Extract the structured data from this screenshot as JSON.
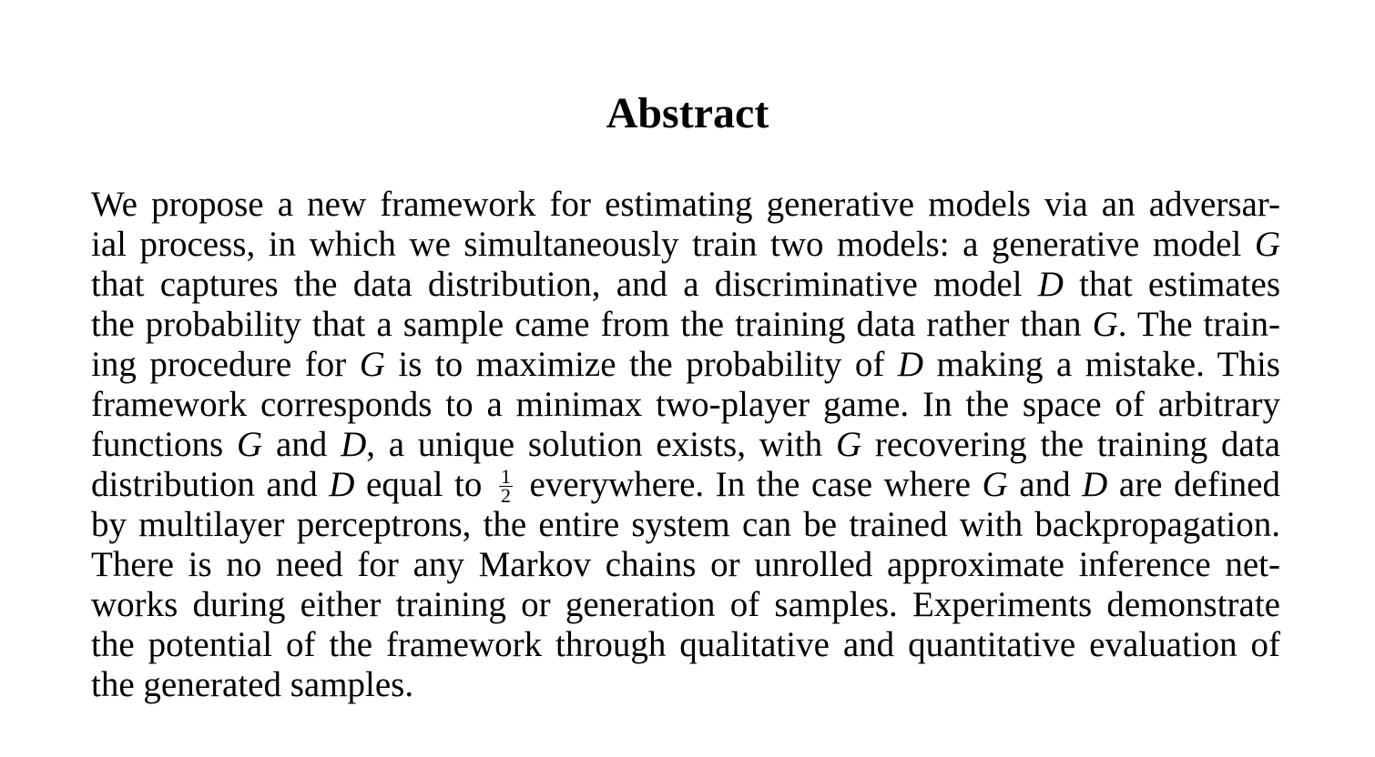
{
  "heading": "Abstract",
  "lines": [
    [
      "We propose a new framework for estimating generative models via an adversar-"
    ],
    [
      "ial process, in which we simultaneously train two models: a generative model ",
      "G"
    ],
    [
      "that captures the data distribution, and a discriminative model ",
      "D",
      " that estimates"
    ],
    [
      "the probability that a sample came from the training data rather than ",
      "G",
      ". The train-"
    ],
    [
      "ing procedure for ",
      "G",
      " is to maximize the probability of ",
      "D",
      " making a mistake. This"
    ],
    [
      "framework corresponds to a minimax two-player game. In the space of arbitrary"
    ],
    [
      "functions ",
      "G",
      " and ",
      "D",
      ", a unique solution exists, with ",
      "G",
      " recovering the training data"
    ],
    [
      "distribution and ",
      "D",
      " equal to ",
      "1/2",
      " everywhere. In the case where ",
      "G",
      " and ",
      "D",
      " are defined"
    ],
    [
      "by multilayer perceptrons, the entire system can be trained with backpropagation."
    ],
    [
      "There is no need for any Markov chains or unrolled approximate inference net-"
    ],
    [
      "works during either training or generation of samples. Experiments demonstrate"
    ],
    [
      "the potential of the framework through qualitative and quantitative evaluation of"
    ],
    [
      "the generated samples."
    ]
  ],
  "fraction": {
    "numerator": "1",
    "denominator": "2"
  }
}
